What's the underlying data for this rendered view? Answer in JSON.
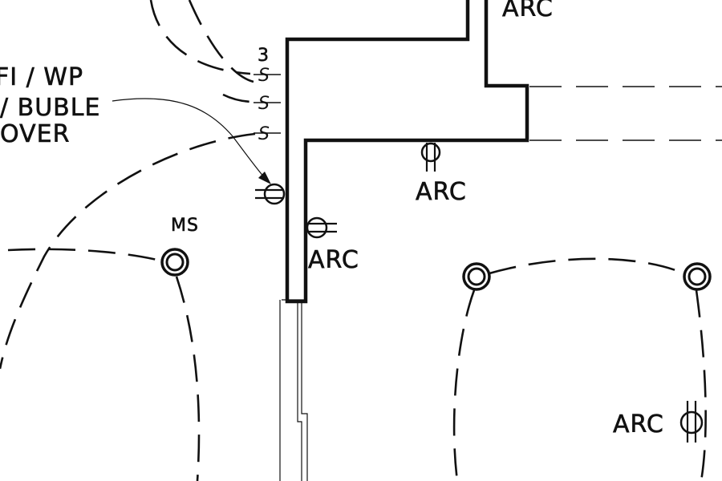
{
  "labels": {
    "arc_top": "ARC",
    "arc_mid": "ARC",
    "arc_wall": "ARC",
    "arc_right": "ARC",
    "ms": "MS",
    "switch_count": "3",
    "note_line1": "FI / WP",
    "note_line2": "/ BUBLE",
    "note_line3": "OVER"
  },
  "switches": [
    "S",
    "S",
    "S"
  ],
  "icons": [
    "light-fixture-icon",
    "receptacle-icon",
    "switch-icon",
    "wall-outlet-icon"
  ]
}
